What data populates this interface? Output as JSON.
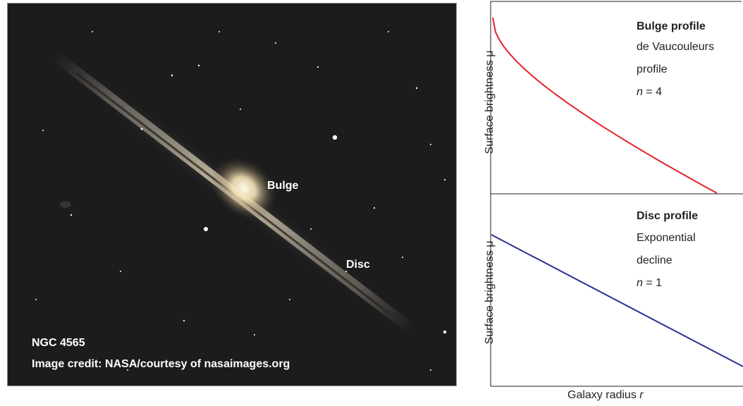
{
  "photo": {
    "bulge_label": "Bulge",
    "disc_label": "Disc",
    "object_name": "NGC 4565",
    "credit": "Image credit: NASA/courtesy of nasaimages.org"
  },
  "bulge_panel": {
    "title": "Bulge profile",
    "line1": "de Vaucouleurs",
    "line2": "profile",
    "n_var": "n",
    "n_value": " = 4",
    "ylabel": "Surface brightness μ",
    "curve_color": "#e8202a"
  },
  "disc_panel": {
    "title": "Disc profile",
    "line1": "Exponential",
    "line2": "decline",
    "n_var": "n",
    "n_value": " = 1",
    "ylabel": "Surface brightness μ",
    "curve_color": "#2a2f8f"
  },
  "xlabel_text": "Galaxy radius ",
  "xlabel_var": "r",
  "chart_data": [
    {
      "type": "line",
      "title": "Bulge profile",
      "ylabel": "Surface brightness μ",
      "xlabel": "Galaxy radius r",
      "series": [
        {
          "name": "de Vaucouleurs profile n = 4",
          "function": "sersic",
          "sersic_n": 4
        }
      ]
    },
    {
      "type": "line",
      "title": "Disc profile",
      "ylabel": "Surface brightness μ",
      "xlabel": "Galaxy radius r",
      "series": [
        {
          "name": "Exponential decline n = 1",
          "function": "exponential",
          "sersic_n": 1
        }
      ]
    }
  ]
}
